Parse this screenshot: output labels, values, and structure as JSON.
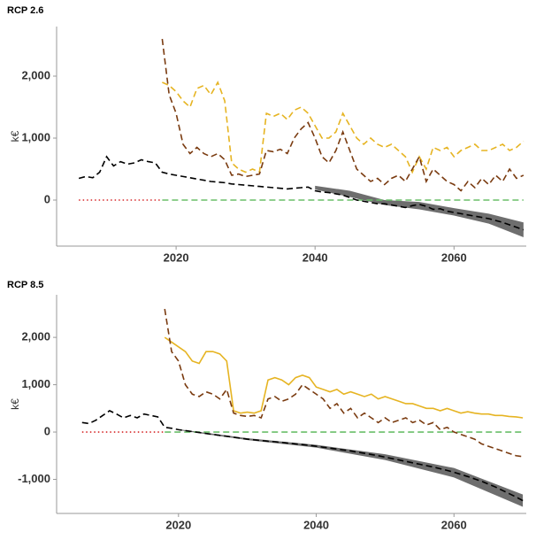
{
  "chart_data": [
    {
      "type": "line",
      "title": "RCP 2.6",
      "y_label": "k€",
      "x": [
        2006,
        2007,
        2008,
        2009,
        2010,
        2011,
        2012,
        2013,
        2014,
        2015,
        2016,
        2017,
        2018,
        2019,
        2020,
        2021,
        2022,
        2023,
        2024,
        2025,
        2026,
        2027,
        2028,
        2029,
        2030,
        2031,
        2032,
        2033,
        2034,
        2035,
        2036,
        2037,
        2038,
        2039,
        2040,
        2041,
        2042,
        2043,
        2044,
        2045,
        2046,
        2047,
        2048,
        2049,
        2050,
        2051,
        2052,
        2053,
        2054,
        2055,
        2056,
        2057,
        2058,
        2059,
        2060,
        2061,
        2062,
        2063,
        2064,
        2065,
        2066,
        2067,
        2068,
        2069,
        2070
      ],
      "xlim": [
        2002.8,
        2070.4
      ],
      "xticks": [
        2020,
        2040,
        2060
      ],
      "ylim": [
        -743,
        2800
      ],
      "yticks": [
        {
          "value": 0,
          "label": "0"
        },
        {
          "value": 1000,
          "label": "1,000"
        },
        {
          "value": 2000,
          "label": "2,000"
        }
      ],
      "bands": [
        {
          "color": "#555555",
          "x": [
            2040,
            2045,
            2050,
            2055,
            2060,
            2065,
            2070
          ],
          "lower": [
            170,
            50,
            -80,
            -150,
            -250,
            -380,
            -600
          ],
          "upper": [
            230,
            150,
            0,
            -30,
            -130,
            -220,
            -360
          ]
        }
      ],
      "series": [
        {
          "color": "#d62728",
          "style": "dotted",
          "values": [
            0,
            0,
            0,
            0,
            0,
            0,
            0,
            0,
            0,
            0,
            0,
            0,
            0,
            null,
            null,
            null,
            null,
            null,
            null,
            null,
            null,
            null,
            null,
            null,
            null,
            null,
            null,
            null,
            null,
            null,
            null,
            null,
            null,
            null,
            null,
            null,
            null,
            null,
            null,
            null,
            null,
            null,
            null,
            null,
            null,
            null,
            null,
            null,
            null,
            null,
            null,
            null,
            null,
            null,
            null,
            null,
            null,
            null,
            null,
            null,
            null,
            null,
            null,
            null,
            null
          ]
        },
        {
          "color": "#6abf69",
          "style": "dashed",
          "values": [
            null,
            null,
            null,
            null,
            null,
            null,
            null,
            null,
            null,
            null,
            null,
            null,
            0,
            0,
            0,
            0,
            0,
            0,
            0,
            0,
            0,
            0,
            0,
            0,
            0,
            0,
            0,
            0,
            0,
            0,
            0,
            0,
            0,
            0,
            0,
            0,
            0,
            0,
            0,
            0,
            0,
            0,
            0,
            0,
            0,
            0,
            0,
            0,
            0,
            0,
            0,
            0,
            0,
            0,
            0,
            0,
            0,
            0,
            0,
            0,
            0,
            0,
            0,
            0,
            0
          ]
        },
        {
          "color": "#e6b422",
          "style": "dashed",
          "values": [
            null,
            null,
            null,
            null,
            null,
            null,
            null,
            null,
            null,
            null,
            null,
            null,
            1900,
            1850,
            1750,
            1600,
            1500,
            1800,
            1850,
            1700,
            1900,
            1600,
            600,
            500,
            450,
            500,
            450,
            1400,
            1350,
            1400,
            1300,
            1450,
            1500,
            1400,
            1200,
            1000,
            1000,
            1100,
            1400,
            1200,
            1000,
            900,
            1000,
            900,
            850,
            900,
            800,
            700,
            450,
            700,
            500,
            850,
            800,
            850,
            700,
            800,
            850,
            900,
            800,
            800,
            850,
            900,
            800,
            850,
            950
          ]
        },
        {
          "color": "#7a3b10",
          "style": "dashed",
          "values": [
            null,
            null,
            null,
            null,
            null,
            null,
            null,
            null,
            null,
            null,
            null,
            null,
            2600,
            1700,
            1400,
            900,
            750,
            850,
            750,
            700,
            750,
            650,
            400,
            420,
            380,
            400,
            420,
            800,
            780,
            820,
            750,
            1000,
            1150,
            1250,
            1000,
            700,
            600,
            800,
            1100,
            800,
            500,
            400,
            300,
            350,
            250,
            350,
            400,
            300,
            500,
            700,
            300,
            500,
            400,
            300,
            250,
            150,
            300,
            200,
            350,
            250,
            400,
            300,
            500,
            350,
            400
          ]
        },
        {
          "color": "#000000",
          "style": "dashed",
          "values": [
            350,
            380,
            360,
            450,
            700,
            550,
            620,
            580,
            600,
            650,
            620,
            600,
            450,
            420,
            400,
            380,
            360,
            340,
            320,
            300,
            290,
            280,
            260,
            250,
            240,
            230,
            220,
            210,
            200,
            190,
            180,
            190,
            200,
            210,
            150,
            130,
            120,
            100,
            80,
            40,
            0,
            -20,
            -40,
            -60,
            -60,
            -80,
            -100,
            -120,
            -90,
            -70,
            -100,
            -150,
            -140,
            -180,
            -200,
            -220,
            -240,
            -260,
            -280,
            -300,
            -330,
            -360,
            -400,
            -440,
            -480
          ]
        }
      ]
    },
    {
      "type": "line",
      "title": "RCP 8.5",
      "y_label": "k€",
      "x": [
        2006,
        2007,
        2008,
        2009,
        2010,
        2011,
        2012,
        2013,
        2014,
        2015,
        2016,
        2017,
        2018,
        2019,
        2020,
        2021,
        2022,
        2023,
        2024,
        2025,
        2026,
        2027,
        2028,
        2029,
        2030,
        2031,
        2032,
        2033,
        2034,
        2035,
        2036,
        2037,
        2038,
        2039,
        2040,
        2041,
        2042,
        2043,
        2044,
        2045,
        2046,
        2047,
        2048,
        2049,
        2050,
        2051,
        2052,
        2053,
        2054,
        2055,
        2056,
        2057,
        2058,
        2059,
        2060,
        2061,
        2062,
        2063,
        2064,
        2065,
        2066,
        2067,
        2068,
        2069,
        2070
      ],
      "xlim": [
        2002.3,
        2070.5
      ],
      "xticks": [
        2020,
        2040,
        2060
      ],
      "ylim": [
        -1720,
        2900
      ],
      "yticks": [
        {
          "value": -1000,
          "label": "-1,000"
        },
        {
          "value": 0,
          "label": "0"
        },
        {
          "value": 1000,
          "label": "1,000"
        },
        {
          "value": 2000,
          "label": "2,000"
        }
      ],
      "bands": [
        {
          "color": "#555555",
          "x": [
            2020,
            2030,
            2040,
            2050,
            2060,
            2070
          ],
          "lower": [
            40,
            -170,
            -330,
            -590,
            -960,
            -1580
          ],
          "upper": [
            60,
            -130,
            -270,
            -470,
            -760,
            -1320
          ]
        }
      ],
      "series": [
        {
          "color": "#d62728",
          "style": "dotted",
          "values": [
            0,
            0,
            0,
            0,
            0,
            0,
            0,
            0,
            0,
            0,
            0,
            0,
            0,
            null,
            null,
            null,
            null,
            null,
            null,
            null,
            null,
            null,
            null,
            null,
            null,
            null,
            null,
            null,
            null,
            null,
            null,
            null,
            null,
            null,
            null,
            null,
            null,
            null,
            null,
            null,
            null,
            null,
            null,
            null,
            null,
            null,
            null,
            null,
            null,
            null,
            null,
            null,
            null,
            null,
            null,
            null,
            null,
            null,
            null,
            null,
            null,
            null,
            null,
            null,
            null
          ]
        },
        {
          "color": "#6abf69",
          "style": "dashed",
          "values": [
            null,
            null,
            null,
            null,
            null,
            null,
            null,
            null,
            null,
            null,
            null,
            null,
            0,
            0,
            0,
            0,
            0,
            0,
            0,
            0,
            0,
            0,
            0,
            0,
            0,
            0,
            0,
            0,
            0,
            0,
            0,
            0,
            0,
            0,
            0,
            0,
            0,
            0,
            0,
            0,
            0,
            0,
            0,
            0,
            0,
            0,
            0,
            0,
            0,
            0,
            0,
            0,
            0,
            0,
            0,
            0,
            0,
            0,
            0,
            0,
            0,
            0,
            0,
            0,
            0
          ]
        },
        {
          "color": "#e6b422",
          "style": "solid",
          "values": [
            null,
            null,
            null,
            null,
            null,
            null,
            null,
            null,
            null,
            null,
            null,
            null,
            2000,
            1900,
            1800,
            1700,
            1500,
            1450,
            1700,
            1700,
            1650,
            1500,
            450,
            400,
            420,
            400,
            450,
            1100,
            1150,
            1100,
            1000,
            1150,
            1200,
            1150,
            950,
            900,
            850,
            900,
            800,
            850,
            800,
            750,
            800,
            700,
            750,
            700,
            650,
            600,
            600,
            550,
            500,
            500,
            450,
            500,
            450,
            400,
            430,
            400,
            380,
            380,
            350,
            350,
            330,
            320,
            300
          ]
        },
        {
          "color": "#7a3b10",
          "style": "dashed",
          "values": [
            null,
            null,
            null,
            null,
            null,
            null,
            null,
            null,
            null,
            null,
            null,
            null,
            2600,
            1700,
            1500,
            1000,
            800,
            750,
            850,
            800,
            700,
            900,
            400,
            350,
            330,
            350,
            300,
            700,
            750,
            650,
            700,
            800,
            1000,
            900,
            800,
            700,
            500,
            600,
            400,
            500,
            300,
            400,
            300,
            200,
            300,
            200,
            250,
            300,
            200,
            250,
            150,
            200,
            50,
            100,
            0,
            -50,
            -100,
            -150,
            -250,
            -300,
            -350,
            -400,
            -450,
            -500,
            -520
          ]
        },
        {
          "color": "#000000",
          "style": "dashed",
          "values": [
            200,
            180,
            250,
            350,
            450,
            380,
            300,
            350,
            300,
            380,
            350,
            320,
            100,
            80,
            50,
            30,
            10,
            -10,
            -30,
            -50,
            -70,
            -90,
            -110,
            -130,
            -150,
            -165,
            -180,
            -195,
            -205,
            -220,
            -235,
            -250,
            -265,
            -280,
            -300,
            -320,
            -340,
            -360,
            -380,
            -400,
            -425,
            -450,
            -475,
            -500,
            -530,
            -560,
            -590,
            -620,
            -650,
            -680,
            -710,
            -740,
            -775,
            -810,
            -850,
            -895,
            -940,
            -990,
            -1040,
            -1100,
            -1160,
            -1230,
            -1300,
            -1370,
            -1450
          ]
        }
      ]
    }
  ]
}
